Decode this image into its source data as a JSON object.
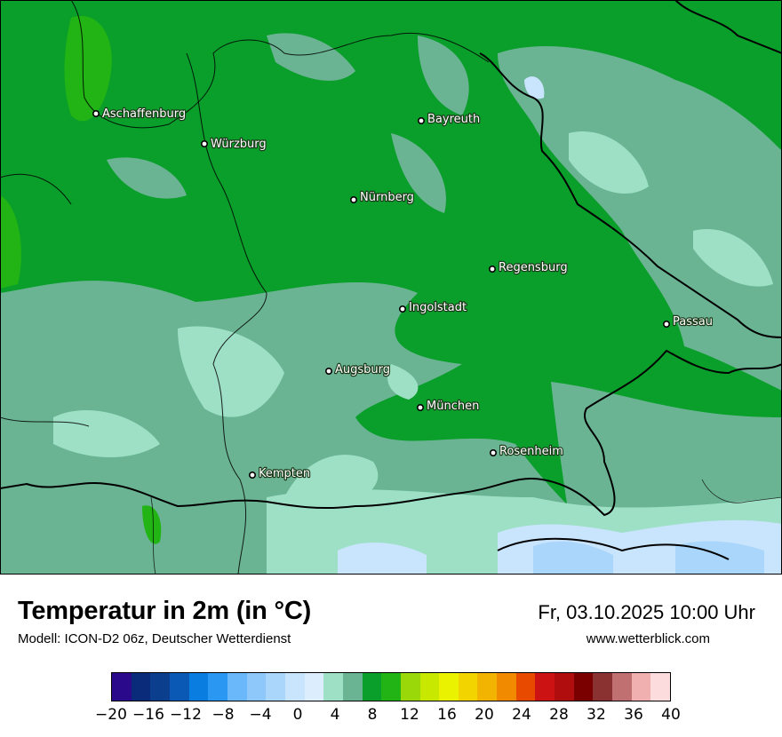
{
  "map": {
    "title": "Temperatur in 2m (in °C)",
    "subtitle": "Modell: ICON-D2 06z, Deutscher Wetterdienst",
    "datetime": "Fr, 03.10.2025 10:00 Uhr",
    "website": "www.wetterblick.com",
    "cities": [
      {
        "name": "Aschaffenburg"
      },
      {
        "name": "Würzburg"
      },
      {
        "name": "Bayreuth"
      },
      {
        "name": "Nürnberg"
      },
      {
        "name": "Regensburg"
      },
      {
        "name": "Ingolstadt"
      },
      {
        "name": "Passau"
      },
      {
        "name": "Augsburg"
      },
      {
        "name": "München"
      },
      {
        "name": "Rosenheim"
      },
      {
        "name": "Kempten"
      }
    ]
  },
  "legend": {
    "colors": [
      "#2a0a8a",
      "#0a2a7a",
      "#0b3f8e",
      "#0a5ab5",
      "#0a7ee0",
      "#2a97f3",
      "#6ab7fa",
      "#8ec8fb",
      "#abd6fc",
      "#c9e4fd",
      "#dcedfe",
      "#9ee0c6",
      "#6ab493",
      "#0a9e2a",
      "#22b414",
      "#9ad80a",
      "#c8e800",
      "#eaf200",
      "#f2d400",
      "#f2b400",
      "#f28a00",
      "#e84a00",
      "#cc1212",
      "#b00e0e",
      "#7a0000",
      "#8a3232",
      "#c07070",
      "#f0b0b0",
      "#fcdcdc"
    ],
    "ticks": [
      "−20",
      "−16",
      "−12",
      "−8",
      "−4",
      "0",
      "4",
      "8",
      "12",
      "16",
      "20",
      "24",
      "28",
      "32",
      "36",
      "40"
    ]
  }
}
